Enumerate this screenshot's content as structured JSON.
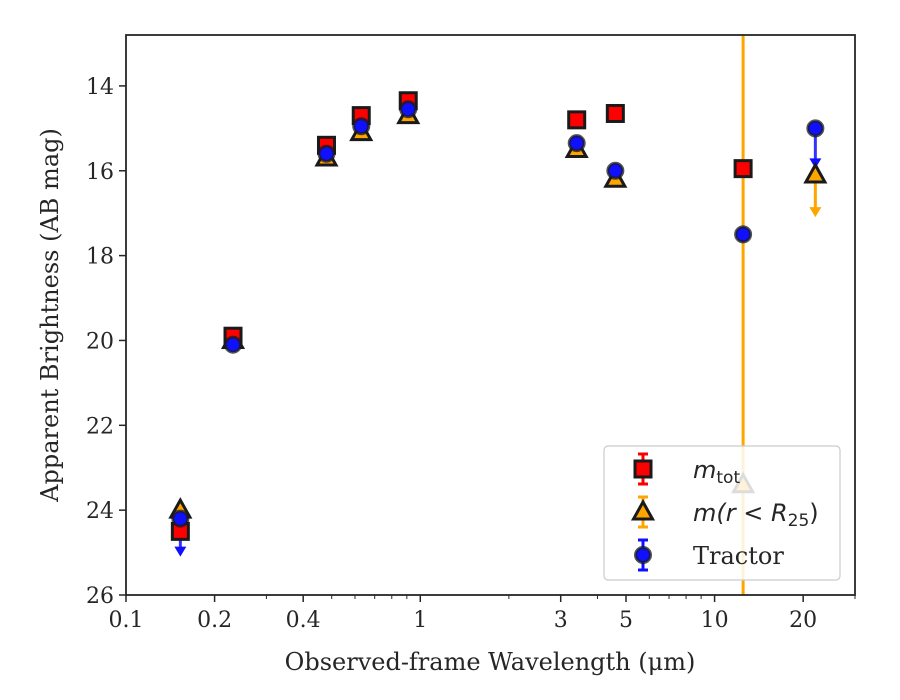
{
  "chart_data": {
    "type": "scatter",
    "title": "",
    "xlabel": "Observed-frame Wavelength (μm)",
    "ylabel": "Apparent Brightness (AB mag)",
    "xscale": "log",
    "xlim": [
      0.1,
      30
    ],
    "ylim": [
      26,
      12.8
    ],
    "y_inverted": true,
    "grid": false,
    "legend_position": "bottom-right",
    "x_ticks": [
      {
        "value": 0.1,
        "label": "0.1"
      },
      {
        "value": 0.2,
        "label": "0.2"
      },
      {
        "value": 0.4,
        "label": "0.4"
      },
      {
        "value": 1,
        "label": "1"
      },
      {
        "value": 3,
        "label": "3"
      },
      {
        "value": 5,
        "label": "5"
      },
      {
        "value": 10,
        "label": "10"
      },
      {
        "value": 20,
        "label": "20"
      }
    ],
    "y_ticks": [
      {
        "value": 14,
        "label": "14"
      },
      {
        "value": 16,
        "label": "16"
      },
      {
        "value": 18,
        "label": "18"
      },
      {
        "value": 20,
        "label": "20"
      },
      {
        "value": 22,
        "label": "22"
      },
      {
        "value": 24,
        "label": "24"
      },
      {
        "value": 26,
        "label": "26"
      }
    ],
    "vertical_line": {
      "x": 12.5,
      "color": "#FFA500"
    },
    "series": [
      {
        "name": "m_tot",
        "label_base": "m",
        "label_sub": "tot",
        "marker": "square",
        "color": "#FF0000",
        "points": [
          {
            "x": 0.153,
            "y": 24.5
          },
          {
            "x": 0.231,
            "y": 19.9
          },
          {
            "x": 0.48,
            "y": 15.4
          },
          {
            "x": 0.63,
            "y": 14.7
          },
          {
            "x": 0.91,
            "y": 14.35
          },
          {
            "x": 3.4,
            "y": 14.8
          },
          {
            "x": 4.6,
            "y": 14.65
          },
          {
            "x": 12.5,
            "y": 15.95
          }
        ]
      },
      {
        "name": "m(r < R_25)",
        "label_base": "m(r < R",
        "label_sub": "25",
        "label_tail": ")",
        "marker": "triangle",
        "color": "#FFA500",
        "points": [
          {
            "x": 0.153,
            "y": 24.0
          },
          {
            "x": 0.231,
            "y": 20.0
          },
          {
            "x": 0.48,
            "y": 15.7
          },
          {
            "x": 0.63,
            "y": 15.1
          },
          {
            "x": 0.91,
            "y": 14.7
          },
          {
            "x": 3.4,
            "y": 15.5
          },
          {
            "x": 4.6,
            "y": 16.2
          },
          {
            "x": 12.5,
            "y": 23.4
          },
          {
            "x": 22,
            "y": 16.1,
            "upper_limit_to": 17.0
          }
        ]
      },
      {
        "name": "Tractor",
        "label_base": "Tractor",
        "marker": "circle",
        "color": "#1010FF",
        "points": [
          {
            "x": 0.153,
            "y": 24.2,
            "upper_limit_to": 25.0
          },
          {
            "x": 0.231,
            "y": 20.1
          },
          {
            "x": 0.48,
            "y": 15.6
          },
          {
            "x": 0.63,
            "y": 14.95
          },
          {
            "x": 0.91,
            "y": 14.55
          },
          {
            "x": 3.4,
            "y": 15.35
          },
          {
            "x": 4.6,
            "y": 16.0
          },
          {
            "x": 12.5,
            "y": 17.5
          },
          {
            "x": 22,
            "y": 15.0,
            "upper_limit_to": 15.85
          }
        ]
      }
    ]
  }
}
